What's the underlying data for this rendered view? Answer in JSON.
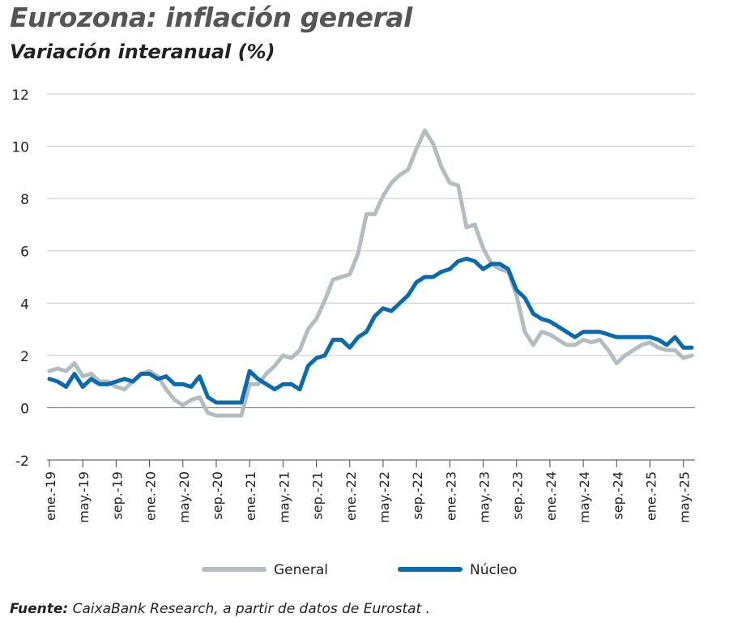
{
  "header": {
    "title": "Eurozona: inflación general",
    "subtitle": "Variación interanual (%)"
  },
  "source": {
    "label": "Fuente:",
    "text": " CaixaBank Research, a partir de datos de Eurostat ."
  },
  "colors": {
    "general": "#b3bdc1",
    "nucleo": "#0a6aad",
    "grid": "#c8c8c8",
    "axis": "#222222"
  },
  "chart_data": {
    "type": "line",
    "ylim": [
      -2,
      12
    ],
    "yticks": [
      -2,
      0,
      2,
      4,
      6,
      8,
      10,
      12
    ],
    "grid": "horizontal",
    "legend_position": "bottom",
    "x": [
      "2019-01",
      "2019-02",
      "2019-03",
      "2019-04",
      "2019-05",
      "2019-06",
      "2019-07",
      "2019-08",
      "2019-09",
      "2019-10",
      "2019-11",
      "2019-12",
      "2020-01",
      "2020-02",
      "2020-03",
      "2020-04",
      "2020-05",
      "2020-06",
      "2020-07",
      "2020-08",
      "2020-09",
      "2020-10",
      "2020-11",
      "2020-12",
      "2021-01",
      "2021-02",
      "2021-03",
      "2021-04",
      "2021-05",
      "2021-06",
      "2021-07",
      "2021-08",
      "2021-09",
      "2021-10",
      "2021-11",
      "2021-12",
      "2022-01",
      "2022-02",
      "2022-03",
      "2022-04",
      "2022-05",
      "2022-06",
      "2022-07",
      "2022-08",
      "2022-09",
      "2022-10",
      "2022-11",
      "2022-12",
      "2023-01",
      "2023-02",
      "2023-03",
      "2023-04",
      "2023-05",
      "2023-06",
      "2023-07",
      "2023-08",
      "2023-09",
      "2023-10",
      "2023-11",
      "2023-12",
      "2024-01",
      "2024-02",
      "2024-03",
      "2024-04",
      "2024-05",
      "2024-06",
      "2024-07",
      "2024-08",
      "2024-09",
      "2024-10",
      "2024-11",
      "2024-12",
      "2025-01",
      "2025-02",
      "2025-03",
      "2025-04",
      "2025-05",
      "2025-06"
    ],
    "tick_labels": [
      "ene.-19",
      "may.-19",
      "sep.-19",
      "ene.-20",
      "may.-20",
      "sep.-20",
      "ene.-21",
      "may.-21",
      "sep.-21",
      "ene.-22",
      "may.-22",
      "sep.-22",
      "ene.-23",
      "may.-23",
      "sep.-23",
      "ene.-24",
      "may.-24",
      "sep.-24",
      "ene.-25",
      "may.-25"
    ],
    "series": [
      {
        "name": "General",
        "values": [
          1.4,
          1.5,
          1.4,
          1.7,
          1.2,
          1.3,
          1.0,
          1.0,
          0.8,
          0.7,
          1.0,
          1.3,
          1.4,
          1.2,
          0.7,
          0.3,
          0.1,
          0.3,
          0.4,
          -0.2,
          -0.3,
          -0.3,
          -0.3,
          -0.3,
          0.9,
          0.9,
          1.3,
          1.6,
          2.0,
          1.9,
          2.2,
          3.0,
          3.4,
          4.1,
          4.9,
          5.0,
          5.1,
          5.9,
          7.4,
          7.4,
          8.1,
          8.6,
          8.9,
          9.1,
          9.9,
          10.6,
          10.1,
          9.2,
          8.6,
          8.5,
          6.9,
          7.0,
          6.1,
          5.5,
          5.3,
          5.2,
          4.3,
          2.9,
          2.4,
          2.9,
          2.8,
          2.6,
          2.4,
          2.4,
          2.6,
          2.5,
          2.6,
          2.2,
          1.7,
          2.0,
          2.2,
          2.4,
          2.5,
          2.3,
          2.2,
          2.2,
          1.9,
          2.0
        ]
      },
      {
        "name": "Núcleo",
        "values": [
          1.1,
          1.0,
          0.8,
          1.3,
          0.8,
          1.1,
          0.9,
          0.9,
          1.0,
          1.1,
          1.0,
          1.3,
          1.3,
          1.1,
          1.2,
          0.9,
          0.9,
          0.8,
          1.2,
          0.4,
          0.2,
          0.2,
          0.2,
          0.2,
          1.4,
          1.1,
          0.9,
          0.7,
          0.9,
          0.9,
          0.7,
          1.6,
          1.9,
          2.0,
          2.6,
          2.6,
          2.3,
          2.7,
          2.9,
          3.5,
          3.8,
          3.7,
          4.0,
          4.3,
          4.8,
          5.0,
          5.0,
          5.2,
          5.3,
          5.6,
          5.7,
          5.6,
          5.3,
          5.5,
          5.5,
          5.3,
          4.5,
          4.2,
          3.6,
          3.4,
          3.3,
          3.1,
          2.9,
          2.7,
          2.9,
          2.9,
          2.9,
          2.8,
          2.7,
          2.7,
          2.7,
          2.7,
          2.7,
          2.6,
          2.4,
          2.7,
          2.3,
          2.3
        ]
      }
    ]
  }
}
